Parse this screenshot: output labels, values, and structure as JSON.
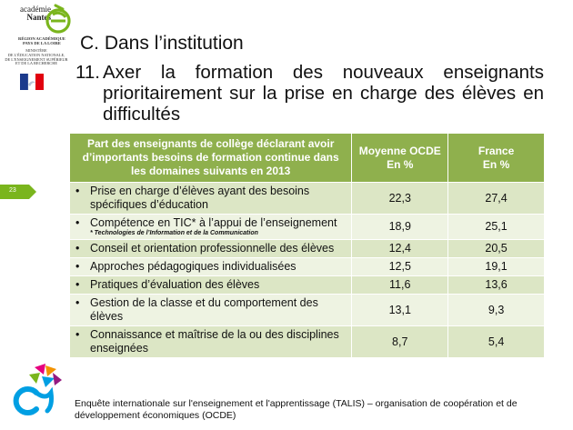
{
  "branding": {
    "academie_line1": "académie",
    "academie_line2": "Nantes",
    "region_line1": "RÉGION ACADÉMIQUE",
    "region_line2": "PAYS DE LA LOIRE",
    "ministere_lines": [
      "MINISTÈRE",
      "DE L'ÉDUCATION NATIONALE,",
      "DE L'ENSEIGNEMENT SUPÉRIEUR",
      "ET DE LA RECHERCHE"
    ],
    "brand_color": "#7ab51d"
  },
  "slide": {
    "section_title": "C.  Dans l’institution",
    "point_number": "11.",
    "point_text": "Axer la formation des nouveaux enseignants prioritairement sur la prise en charge des élèves en difficultés",
    "slide_number": "23"
  },
  "table": {
    "headers": {
      "label": "Part des enseignants de collège déclarant avoir d’importants  besoins de formation continue dans les domaines suivants en 2013",
      "ocde": "Moyenne OCDE\nEn %",
      "france": "France\nEn %"
    },
    "rows": [
      {
        "label": "Prise en charge d’élèves ayant des besoins spécifiques d’éducation",
        "note": "",
        "ocde": "22,3",
        "france": "27,4"
      },
      {
        "label": "Compétence en TIC* à l’appui de l’enseignement",
        "note": "* Technologies de l’Information et de la Communication",
        "ocde": "18,9",
        "france": "25,1"
      },
      {
        "label": "Conseil et orientation professionnelle  des élèves",
        "note": "",
        "ocde": "12,4",
        "france": "20,5"
      },
      {
        "label": "Approches pédagogiques individualisées",
        "note": "",
        "ocde": "12,5",
        "france": "19,1"
      },
      {
        "label": "Pratiques d’évaluation des élèves",
        "note": "",
        "ocde": "11,6",
        "france": "13,6"
      },
      {
        "label": "Gestion de la classe et du comportement des élèves",
        "note": "",
        "ocde": "13,1",
        "france": "9,3"
      },
      {
        "label": "Connaissance et maîtrise de la ou des disciplines enseignées",
        "note": "",
        "ocde": "8,7",
        "france": "5,4"
      }
    ],
    "bullet": "•"
  },
  "footer": {
    "source": "Enquête internationale sur l'enseignement et l'apprentissage (TALIS) – organisation de coopération et de développement économiques (OCDE)"
  }
}
